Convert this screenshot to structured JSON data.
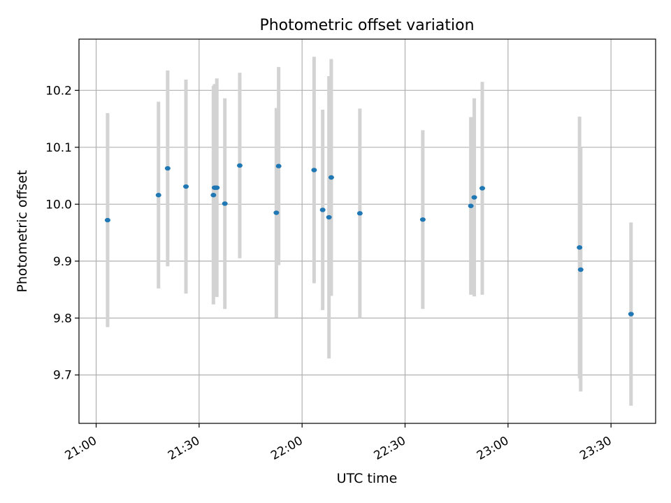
{
  "chart_data": {
    "type": "scatter",
    "title": "Photometric offset variation",
    "xlabel": "UTC time",
    "ylabel": "Photometric offset",
    "x_range": [
      "20:55",
      "23:43"
    ],
    "ylim": [
      9.615,
      10.29
    ],
    "x_ticks": [
      "21:00",
      "21:30",
      "22:00",
      "22:30",
      "23:00",
      "23:30"
    ],
    "y_ticks": [
      9.7,
      9.8,
      9.9,
      10.0,
      10.1,
      10.2
    ],
    "y_tick_labels": [
      "9.7",
      "9.8",
      "9.9",
      "10.0",
      "10.1",
      "10.2"
    ],
    "grid": true,
    "x_tick_rotation": "30 degrees",
    "series": [
      {
        "point_color": "#1f77b4",
        "errorbar_color": "#d3d3d3",
        "points": [
          {
            "x": "21:03:20",
            "y": 9.972,
            "yerr": 0.188
          },
          {
            "x": "21:18:10",
            "y": 10.016,
            "yerr": 0.164
          },
          {
            "x": "21:20:50",
            "y": 10.063,
            "yerr": 0.172
          },
          {
            "x": "21:26:10",
            "y": 10.031,
            "yerr": 0.188
          },
          {
            "x": "21:34:10",
            "y": 10.016,
            "yerr": 0.192
          },
          {
            "x": "21:34:30",
            "y": 10.029,
            "yerr": 0.182
          },
          {
            "x": "21:34:50",
            "y": 10.029,
            "yerr": 0.182
          },
          {
            "x": "21:35:10",
            "y": 10.029,
            "yerr": 0.192
          },
          {
            "x": "21:37:30",
            "y": 10.001,
            "yerr": 0.185
          },
          {
            "x": "21:41:50",
            "y": 10.068,
            "yerr": 0.163
          },
          {
            "x": "21:52:30",
            "y": 9.985,
            "yerr": 0.184
          },
          {
            "x": "21:53:10",
            "y": 10.067,
            "yerr": 0.174
          },
          {
            "x": "22:03:30",
            "y": 10.06,
            "yerr": 0.199
          },
          {
            "x": "22:06:00",
            "y": 9.99,
            "yerr": 0.176
          },
          {
            "x": "22:07:50",
            "y": 9.977,
            "yerr": 0.248
          },
          {
            "x": "22:08:30",
            "y": 10.047,
            "yerr": 0.208
          },
          {
            "x": "22:16:50",
            "y": 9.984,
            "yerr": 0.184
          },
          {
            "x": "22:35:10",
            "y": 9.973,
            "yerr": 0.157
          },
          {
            "x": "22:49:10",
            "y": 9.997,
            "yerr": 0.156
          },
          {
            "x": "22:50:10",
            "y": 10.012,
            "yerr": 0.174
          },
          {
            "x": "22:52:30",
            "y": 10.028,
            "yerr": 0.187
          },
          {
            "x": "23:20:50",
            "y": 9.924,
            "yerr": 0.23
          },
          {
            "x": "23:21:10",
            "y": 9.885,
            "yerr": 0.214
          },
          {
            "x": "23:35:50",
            "y": 9.807,
            "yerr": 0.161
          }
        ]
      }
    ]
  }
}
